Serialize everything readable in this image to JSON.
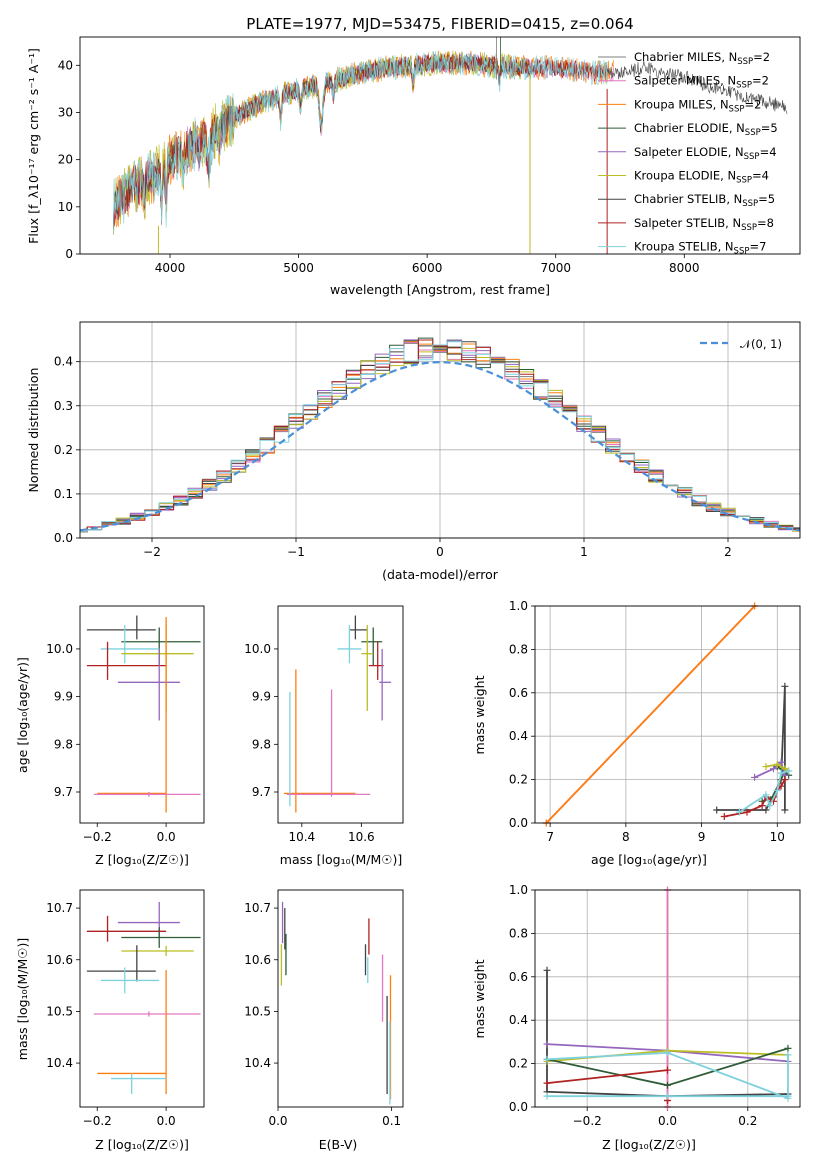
{
  "chart_data": [
    {
      "type": "line",
      "title": "PLATE=1977, MJD=53475, FIBERID=0415, z=0.064",
      "xlabel": "wavelength [Angstrom, rest frame]",
      "ylabel": "Flux [f_λ10⁻¹⁷ erg cm⁻² s⁻¹ A⁻¹]",
      "xlim": [
        3300,
        8900
      ],
      "ylim": [
        0,
        46
      ],
      "xticks": [
        "4000",
        "5000",
        "6000",
        "7000",
        "8000"
      ],
      "yticks": [
        "0",
        "10",
        "20",
        "30",
        "40"
      ],
      "grid": false,
      "legend_position": "top-right",
      "continuum": {
        "x": [
          3560,
          3700,
          3900,
          4000,
          4100,
          4300,
          4500,
          4700,
          4900,
          5100,
          5300,
          5500,
          5700,
          5900,
          6100,
          6300,
          6500,
          6700,
          6900,
          7100,
          7300,
          7500,
          7600,
          7700,
          7800,
          8000,
          8200,
          8400,
          8600,
          8800
        ],
        "y": [
          10,
          14,
          17,
          20,
          22,
          25,
          29,
          32,
          34,
          35.5,
          37,
          38.5,
          39.5,
          40,
          40.5,
          40.5,
          40,
          39.5,
          39.5,
          39,
          38.5,
          38.5,
          39,
          39.5,
          38.5,
          37.5,
          35.5,
          34,
          32.5,
          31
        ]
      },
      "series": [
        {
          "name": "Chabrier MILES, N_SSP=2",
          "color": "#7f7f7f",
          "x_end": 7450
        },
        {
          "name": "Salpeter MILES, N_SSP=2",
          "color": "#e377c2",
          "x_end": 7450
        },
        {
          "name": "Kroupa MILES, N_SSP=2",
          "color": "#ff7f0e",
          "x_end": 7450
        },
        {
          "name": "Chabrier ELODIE, N_SSP=5",
          "color": "#2f5b36",
          "x_end": 6800
        },
        {
          "name": "Salpeter ELODIE, N_SSP=4",
          "color": "#9467bd",
          "x_end": 6800
        },
        {
          "name": "Kroupa ELODIE, N_SSP=4",
          "color": "#bcbd22",
          "x_end": 6800
        },
        {
          "name": "Chabrier STELIB, N_SSP=5",
          "color": "#444444",
          "x_end": 8800
        },
        {
          "name": "Salpeter STELIB, N_SSP=8",
          "color": "#b22222",
          "x_end": 7400
        },
        {
          "name": "Kroupa STELIB, N_SSP=7",
          "color": "#7fd2dd",
          "x_end": 7400
        }
      ]
    },
    {
      "type": "line",
      "title": "",
      "xlabel": "(data-model)/error",
      "ylabel": "Normed distribution",
      "xlim": [
        -2.5,
        2.5
      ],
      "ylim": [
        0,
        0.49
      ],
      "xticks": [
        "−2",
        "−1",
        "0",
        "1",
        "2"
      ],
      "yticks": [
        "0.0",
        "0.1",
        "0.2",
        "0.3",
        "0.4"
      ],
      "grid": true,
      "legend_position": "top-right",
      "legend": [
        "𝒩(0, 1)"
      ],
      "reference_curve": {
        "name": "𝒩(0, 1)",
        "color": "#4a90d9",
        "style": "dashed"
      },
      "bin_width": 0.1,
      "series_colors": [
        "#7f7f7f",
        "#e377c2",
        "#ff7f0e",
        "#2f5b36",
        "#9467bd",
        "#bcbd22",
        "#444444",
        "#b22222",
        "#7fd2dd"
      ]
    },
    {
      "type": "scatter",
      "xlabel": "Z [log₁₀(Z/Z☉)]",
      "ylabel": "age  [log₁₀(age/yr)]",
      "xlim": [
        -0.25,
        0.11
      ],
      "ylim": [
        9.635,
        10.09
      ],
      "xticks": [
        "−0.2",
        "0.0"
      ],
      "yticks": [
        "9.7",
        "9.8",
        "9.9",
        "10.0"
      ],
      "points": [
        {
          "color": "#444444",
          "x": -0.085,
          "y": 10.04,
          "xerr": [
            0.145,
            0.055
          ],
          "yerr": [
            0.02,
            0.03
          ]
        },
        {
          "color": "#2f5b36",
          "x": -0.02,
          "y": 10.015,
          "xerr": [
            0.11,
            0.12
          ],
          "yerr": [
            0.05,
            0.03
          ]
        },
        {
          "color": "#7fd2dd",
          "x": -0.12,
          "y": 10.0,
          "xerr": [
            0.07,
            0.1
          ],
          "yerr": [
            0.03,
            0.05
          ]
        },
        {
          "color": "#bcbd22",
          "x": 0.0,
          "y": 9.99,
          "xerr": [
            0.13,
            0.08
          ],
          "yerr": [
            0.12,
            0.06
          ]
        },
        {
          "color": "#b22222",
          "x": -0.17,
          "y": 9.965,
          "xerr": [
            0.06,
            0.17
          ],
          "yerr": [
            0.03,
            0.05
          ]
        },
        {
          "color": "#9467bd",
          "x": -0.02,
          "y": 9.93,
          "xerr": [
            0.12,
            0.06
          ],
          "yerr": [
            0.08,
            0.07
          ]
        },
        {
          "color": "#ff7f0e",
          "x": 0.0,
          "y": 9.697,
          "xerr": [
            0.2,
            0.0
          ],
          "yerr": [
            0.04,
            0.37
          ]
        },
        {
          "color": "#e377c2",
          "x": -0.05,
          "y": 9.695,
          "xerr": [
            0.16,
            0.15
          ],
          "yerr": [
            0.005,
            0.005
          ]
        }
      ]
    },
    {
      "type": "scatter",
      "xlabel": "mass [log₁₀(M/M☉)]",
      "ylabel": "",
      "xlim": [
        10.32,
        10.74
      ],
      "ylim": [
        9.635,
        10.09
      ],
      "xticks": [
        "10.4",
        "10.6"
      ],
      "yticks": [
        "9.7",
        "9.8",
        "9.9",
        "10.0"
      ],
      "points": [
        {
          "color": "#444444",
          "x": 10.58,
          "y": 10.04,
          "xerr": [
            0.02,
            0.04
          ],
          "yerr": [
            0.02,
            0.03
          ]
        },
        {
          "color": "#2f5b36",
          "x": 10.64,
          "y": 10.015,
          "xerr": [
            0.04,
            0.03
          ],
          "yerr": [
            0.05,
            0.03
          ]
        },
        {
          "color": "#7fd2dd",
          "x": 10.56,
          "y": 10.0,
          "xerr": [
            0.04,
            0.04
          ],
          "yerr": [
            0.03,
            0.05
          ]
        },
        {
          "color": "#bcbd22",
          "x": 10.62,
          "y": 9.99,
          "xerr": [
            0.02,
            0.02
          ],
          "yerr": [
            0.12,
            0.06
          ]
        },
        {
          "color": "#b22222",
          "x": 10.655,
          "y": 9.965,
          "xerr": [
            0.03,
            0.02
          ],
          "yerr": [
            0.03,
            0.05
          ]
        },
        {
          "color": "#9467bd",
          "x": 10.67,
          "y": 9.93,
          "xerr": [
            0.01,
            0.03
          ],
          "yerr": [
            0.08,
            0.07
          ]
        },
        {
          "color": "#ff7f0e",
          "x": 10.38,
          "y": 9.697,
          "xerr": [
            0.04,
            0.2
          ],
          "yerr": [
            0.04,
            0.26
          ]
        },
        {
          "color": "#7fd2dd",
          "x": 10.36,
          "y": 9.7,
          "xerr": [
            0.0,
            0.0
          ],
          "yerr": [
            0.03,
            0.21
          ]
        },
        {
          "color": "#e377c2",
          "x": 10.5,
          "y": 9.695,
          "xerr": [
            0.15,
            0.13
          ],
          "yerr": [
            0.005,
            0.22
          ]
        }
      ]
    },
    {
      "type": "line",
      "xlabel": "age  [log₁₀(age/yr)]",
      "ylabel": "mass weight",
      "xlim": [
        6.8,
        10.3
      ],
      "ylim": [
        0,
        1.0
      ],
      "xticks": [
        "7",
        "8",
        "9",
        "10"
      ],
      "yticks": [
        "0.0",
        "0.2",
        "0.4",
        "0.6",
        "0.8",
        "1.0"
      ],
      "grid": true,
      "series": [
        {
          "color": "#e377c2",
          "x": [
            6.95,
            9.7
          ],
          "y": [
            0.0,
            1.0
          ]
        },
        {
          "color": "#ff7f0e",
          "x": [
            6.95,
            9.7
          ],
          "y": [
            0.0,
            1.0
          ]
        },
        {
          "color": "#444444",
          "x": [
            9.2,
            9.85,
            10.05,
            10.1,
            10.1
          ],
          "y": [
            0.06,
            0.06,
            0.2,
            0.63,
            0.06
          ]
        },
        {
          "color": "#2f5b36",
          "x": [
            9.8,
            9.95,
            10.1,
            10.15,
            10.0
          ],
          "y": [
            0.1,
            0.12,
            0.24,
            0.22,
            0.26
          ]
        },
        {
          "color": "#9467bd",
          "x": [
            9.7,
            9.95,
            10.05,
            10.1
          ],
          "y": [
            0.21,
            0.25,
            0.28,
            0.22
          ]
        },
        {
          "color": "#bcbd22",
          "x": [
            9.85,
            10.0,
            10.1,
            10.15
          ],
          "y": [
            0.26,
            0.27,
            0.25,
            0.24
          ]
        },
        {
          "color": "#b22222",
          "x": [
            9.3,
            9.6,
            9.8,
            9.85,
            9.95,
            10.0,
            10.05,
            10.1
          ],
          "y": [
            0.03,
            0.05,
            0.08,
            0.12,
            0.1,
            0.15,
            0.17,
            0.2
          ]
        },
        {
          "color": "#7fd2dd",
          "x": [
            9.5,
            9.85,
            9.9,
            10.0,
            10.05,
            10.15
          ],
          "y": [
            0.05,
            0.13,
            0.08,
            0.15,
            0.23,
            0.24
          ]
        }
      ]
    },
    {
      "type": "scatter",
      "xlabel": "Z [log₁₀(Z/Z☉)]",
      "ylabel": "mass [log₁₀(M/M☉)]",
      "xlim": [
        -0.25,
        0.11
      ],
      "ylim": [
        10.315,
        10.735
      ],
      "xticks": [
        "−0.2",
        "0.0"
      ],
      "yticks": [
        "10.4",
        "10.5",
        "10.6",
        "10.7"
      ],
      "points": [
        {
          "color": "#9467bd",
          "x": -0.02,
          "y": 10.672,
          "xerr": [
            0.12,
            0.06
          ],
          "yerr": [
            0.03,
            0.04
          ]
        },
        {
          "color": "#b22222",
          "x": -0.17,
          "y": 10.655,
          "xerr": [
            0.06,
            0.17
          ],
          "yerr": [
            0.02,
            0.03
          ]
        },
        {
          "color": "#2f5b36",
          "x": -0.02,
          "y": 10.643,
          "xerr": [
            0.11,
            0.12
          ],
          "yerr": [
            0.02,
            0.02
          ]
        },
        {
          "color": "#bcbd22",
          "x": 0.0,
          "y": 10.617,
          "xerr": [
            0.13,
            0.08
          ],
          "yerr": [
            0.01,
            0.01
          ]
        },
        {
          "color": "#444444",
          "x": -0.085,
          "y": 10.578,
          "xerr": [
            0.145,
            0.055
          ],
          "yerr": [
            0.02,
            0.05
          ]
        },
        {
          "color": "#7fd2dd",
          "x": -0.12,
          "y": 10.56,
          "xerr": [
            0.07,
            0.1
          ],
          "yerr": [
            0.025,
            0.025
          ]
        },
        {
          "color": "#e377c2",
          "x": -0.05,
          "y": 10.495,
          "xerr": [
            0.16,
            0.15
          ],
          "yerr": [
            0.005,
            0.005
          ]
        },
        {
          "color": "#ff7f0e",
          "x": 0.0,
          "y": 10.38,
          "xerr": [
            0.2,
            0.0
          ],
          "yerr": [
            0.04,
            0.2
          ]
        },
        {
          "color": "#7fd2dd",
          "x": -0.1,
          "y": 10.37,
          "xerr": [
            0.06,
            0.1
          ],
          "yerr": [
            0.03,
            0.01
          ]
        }
      ]
    },
    {
      "type": "scatter",
      "xlabel": "E(B-V)",
      "ylabel": "",
      "xlim": [
        0.0,
        0.11
      ],
      "ylim": [
        10.315,
        10.735
      ],
      "xticks": [
        "0.0",
        "0.1"
      ],
      "yticks": [
        "10.4",
        "10.5",
        "10.6",
        "10.7"
      ],
      "points": [
        {
          "color": "#9467bd",
          "x": 0.004,
          "y": 10.672,
          "yerr": [
            0.04,
            0.04
          ]
        },
        {
          "color": "#444444",
          "x": 0.006,
          "y": 10.66,
          "yerr": [
            0.04,
            0.04
          ]
        },
        {
          "color": "#bcbd22",
          "x": 0.003,
          "y": 10.6,
          "yerr": [
            0.05,
            0.03
          ]
        },
        {
          "color": "#2f5b36",
          "x": 0.007,
          "y": 10.6,
          "yerr": [
            0.03,
            0.05
          ]
        },
        {
          "color": "#444444",
          "x": 0.077,
          "y": 10.6,
          "yerr": [
            0.03,
            0.03
          ]
        },
        {
          "color": "#b22222",
          "x": 0.08,
          "y": 10.64,
          "yerr": [
            0.03,
            0.04
          ]
        },
        {
          "color": "#7fd2dd",
          "x": 0.079,
          "y": 10.58,
          "yerr": [
            0.025,
            0.025
          ]
        },
        {
          "color": "#e377c2",
          "x": 0.092,
          "y": 10.51,
          "yerr": [
            0.03,
            0.1
          ]
        },
        {
          "color": "#444444",
          "x": 0.096,
          "y": 10.45,
          "yerr": [
            0.11,
            0.08
          ]
        },
        {
          "color": "#ff7f0e",
          "x": 0.099,
          "y": 10.45,
          "yerr": [
            0.12,
            0.12
          ]
        },
        {
          "color": "#7fd2dd",
          "x": 0.0985,
          "y": 10.42,
          "yerr": [
            0.1,
            0.06
          ]
        }
      ]
    },
    {
      "type": "line",
      "xlabel": "Z [log₁₀(Z/Z☉)]",
      "ylabel": "mass weight",
      "xlim": [
        -0.33,
        0.33
      ],
      "ylim": [
        0,
        1.0
      ],
      "xticks": [
        "−0.2",
        "0.0",
        "0.2"
      ],
      "yticks": [
        "0.0",
        "0.2",
        "0.4",
        "0.6",
        "0.8",
        "1.0"
      ],
      "grid": true,
      "series": [
        {
          "color": "#444444",
          "x": [
            -0.3,
            -0.3,
            0.0,
            0.3
          ],
          "y": [
            0.63,
            0.07,
            0.05,
            0.06
          ]
        },
        {
          "color": "#ff7f0e",
          "x": [
            0.0,
            0.0
          ],
          "y": [
            1.0,
            0.0
          ]
        },
        {
          "color": "#e377c2",
          "x": [
            0.0,
            0.0
          ],
          "y": [
            1.0,
            0.0
          ]
        },
        {
          "color": "#9467bd",
          "x": [
            -0.3,
            0.0,
            0.3
          ],
          "y": [
            0.29,
            0.26,
            0.21
          ]
        },
        {
          "color": "#bcbd22",
          "x": [
            -0.3,
            0.0,
            0.3
          ],
          "y": [
            0.21,
            0.26,
            0.24
          ]
        },
        {
          "color": "#2f5b36",
          "x": [
            -0.3,
            0.0,
            0.3
          ],
          "y": [
            0.22,
            0.1,
            0.27
          ]
        },
        {
          "color": "#b22222",
          "x": [
            -0.3,
            0.0
          ],
          "y": [
            0.11,
            0.17
          ]
        },
        {
          "color": "#b22222",
          "x": [
            0.0,
            0.0
          ],
          "y": [
            0.03,
            0.03
          ]
        },
        {
          "color": "#7fd2dd",
          "x": [
            -0.3,
            0.0,
            0.3,
            0.3
          ],
          "y": [
            0.05,
            0.05,
            0.05,
            0.24
          ]
        },
        {
          "color": "#7fd2dd",
          "x": [
            -0.3,
            0.0,
            0.3
          ],
          "y": [
            0.22,
            0.25,
            0.04
          ]
        }
      ]
    }
  ]
}
